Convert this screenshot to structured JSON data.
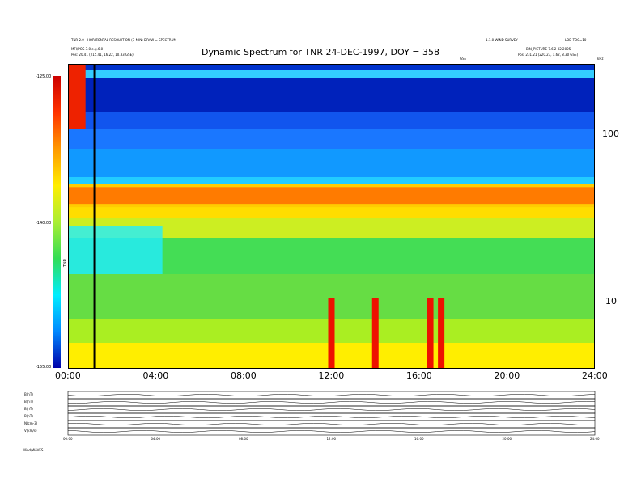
{
  "header": {
    "left_line1": "TNR 2.0 - HORIZONTAL RESOLUTION (3 MIN) DRAW = SPECTRUM",
    "left_line2": "MFI/POS 3.0 e.g.6.0",
    "left_line3": "Pos:   20.41 (215.41, 16.22, 10.33 GSE)",
    "right_line1": "1.1.0 WIND SURVEY",
    "right_line2": "LOD TOC=10",
    "right_line3": "BIN_PICTURE  7.6.2 02.2005",
    "right_line4": "Pos:   231.21 (220.23, 1.62, 8.30 GSE)",
    "right_mark": "GSE",
    "right_unit": "kHz"
  },
  "chart_data": {
    "type": "heatmap",
    "title": "Dynamic Spectrum for TNR 24-DEC-1997, DOY = 358",
    "x_axis": {
      "ticks": [
        "00:00",
        "04:00",
        "08:00",
        "12:00",
        "16:00",
        "20:00",
        "24:00"
      ],
      "range_hours": [
        0,
        24
      ]
    },
    "y_axis": {
      "scale": "log",
      "unit": "kHz",
      "ticks": [
        "100",
        "10"
      ],
      "tick_values_khz": [
        100,
        10
      ]
    },
    "colorbar": {
      "label": "TNR",
      "ticks": [
        "-125.00",
        "-140.00",
        "-155.00"
      ],
      "tick_values": [
        -125,
        -140,
        -155
      ],
      "colors": [
        "#cc0000",
        "#ff3300",
        "#ff9900",
        "#ffee00",
        "#aaee33",
        "#33dd55",
        "#00eeff",
        "#0088ff",
        "#0000aa"
      ]
    },
    "features": {
      "plasma_line_band": {
        "time_hours": [
          0,
          24
        ],
        "freq_khz_approx": [
          38,
          48
        ]
      },
      "type3_bursts_hours": [
        12.0,
        14.0,
        16.5,
        17.0
      ],
      "vertical_marker_hours": 1.2
    },
    "bottom_panels": {
      "labels": [
        "B(nT)",
        "B(nT)",
        "B(nT)",
        "B(nT)",
        "N(cm-3)",
        "V(km/s)"
      ],
      "x_ticks": [
        "00:00",
        "04:00",
        "08:00",
        "12:00",
        "16:00",
        "20:00",
        "24:00"
      ],
      "footer": "Wind/WAVES"
    }
  }
}
